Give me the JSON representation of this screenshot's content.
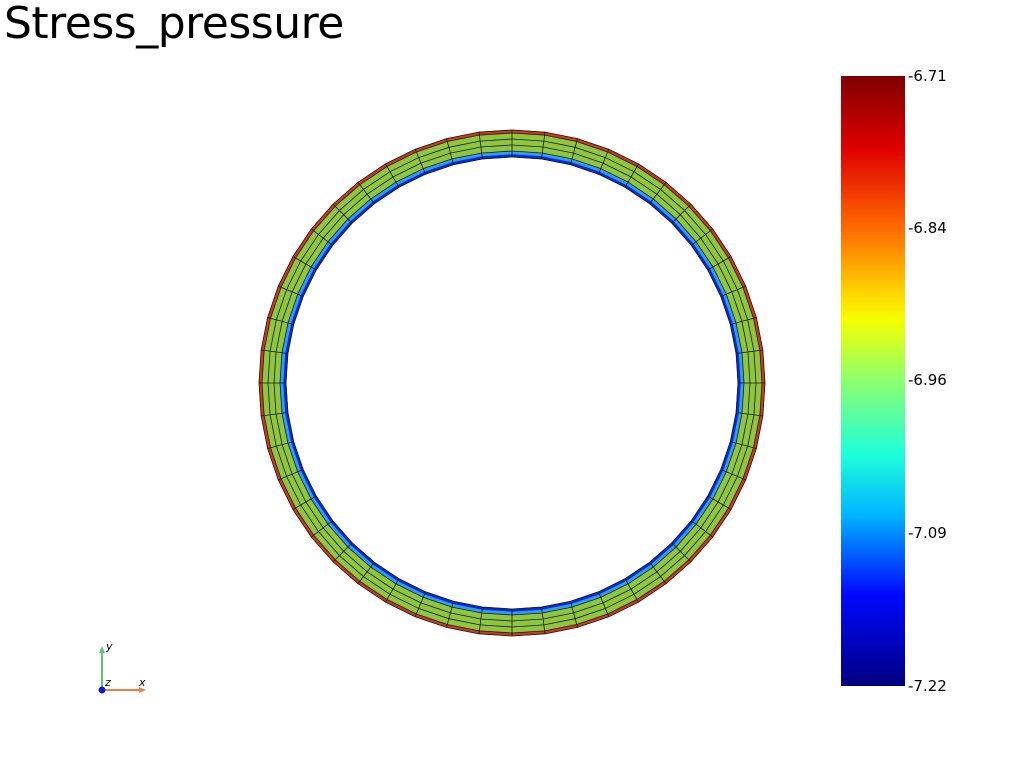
{
  "title": "Stress_pressure",
  "colorbar": {
    "ticks": [
      "-6.71",
      "-6.84",
      "-6.96",
      "-7.09",
      "-7.22"
    ],
    "max": -6.71,
    "min": -7.22,
    "colormap": "jet"
  },
  "mesh": {
    "shape": "ring",
    "segments": 48,
    "layers": 4,
    "layer_colors": [
      "#0a2bd6",
      "#2f9ef0",
      "#8ec63f",
      "#8ec63f",
      "#cc3b1a"
    ],
    "edge_color": "#1a1a1a"
  },
  "axes": {
    "x_label": "x",
    "y_label": "y",
    "z_label": "z",
    "x_color": "#f07c4a",
    "y_color": "#5cc77a",
    "z_color": "#1515d8"
  }
}
